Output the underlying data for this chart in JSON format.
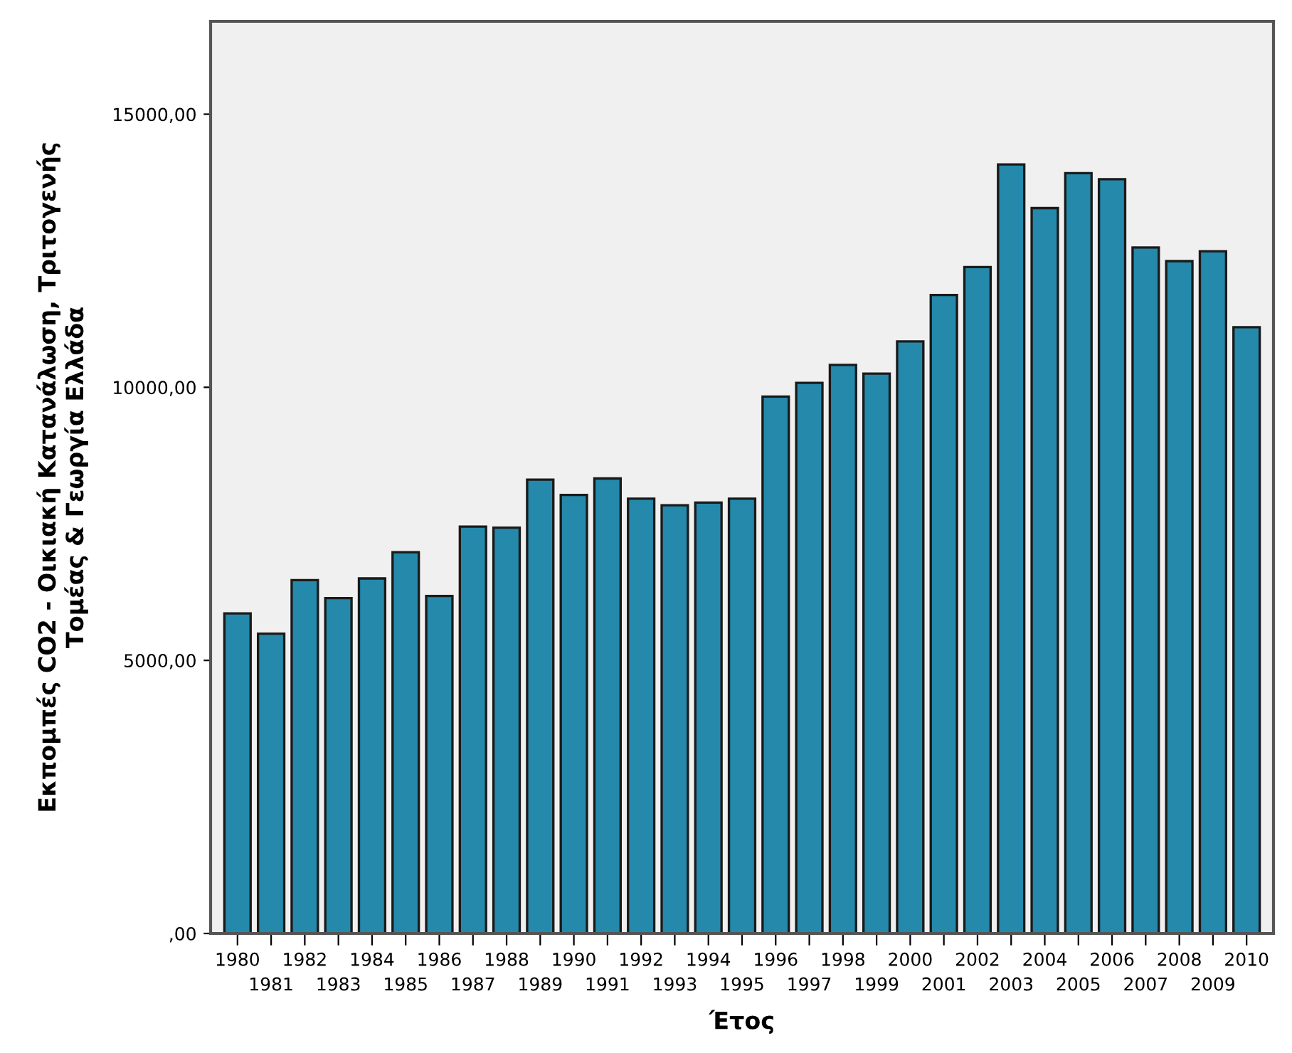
{
  "chart_data": {
    "type": "bar",
    "xlabel": "Έτος",
    "ylabel": "Εκπομπές CO2 - Οικιακή Κατανάλωση, Τριτογενής\nΤομέας & Γεωργία Ελλάδα",
    "categories": [
      "1980",
      "1981",
      "1982",
      "1983",
      "1984",
      "1985",
      "1986",
      "1987",
      "1988",
      "1989",
      "1990",
      "1991",
      "1992",
      "1993",
      "1994",
      "1995",
      "1996",
      "1997",
      "1998",
      "1999",
      "2000",
      "2001",
      "2002",
      "2003",
      "2004",
      "2005",
      "2006",
      "2007",
      "2008",
      "2009",
      "2010"
    ],
    "values": [
      5860,
      5490,
      6470,
      6140,
      6500,
      6980,
      6180,
      7450,
      7430,
      8310,
      8030,
      8330,
      7960,
      7840,
      7890,
      7960,
      9830,
      10080,
      10410,
      10250,
      10840,
      11690,
      12200,
      14080,
      13280,
      13920,
      13810,
      12560,
      12310,
      12490,
      11100
    ],
    "color": "#2489ab",
    "ylim": [
      0,
      16700
    ],
    "yticks": [
      {
        "value": 0,
        "label": ",00"
      },
      {
        "value": 5000,
        "label": "5000,00"
      },
      {
        "value": 10000,
        "label": "10000,00"
      },
      {
        "value": 15000,
        "label": "15000,00"
      }
    ],
    "grid": false
  }
}
